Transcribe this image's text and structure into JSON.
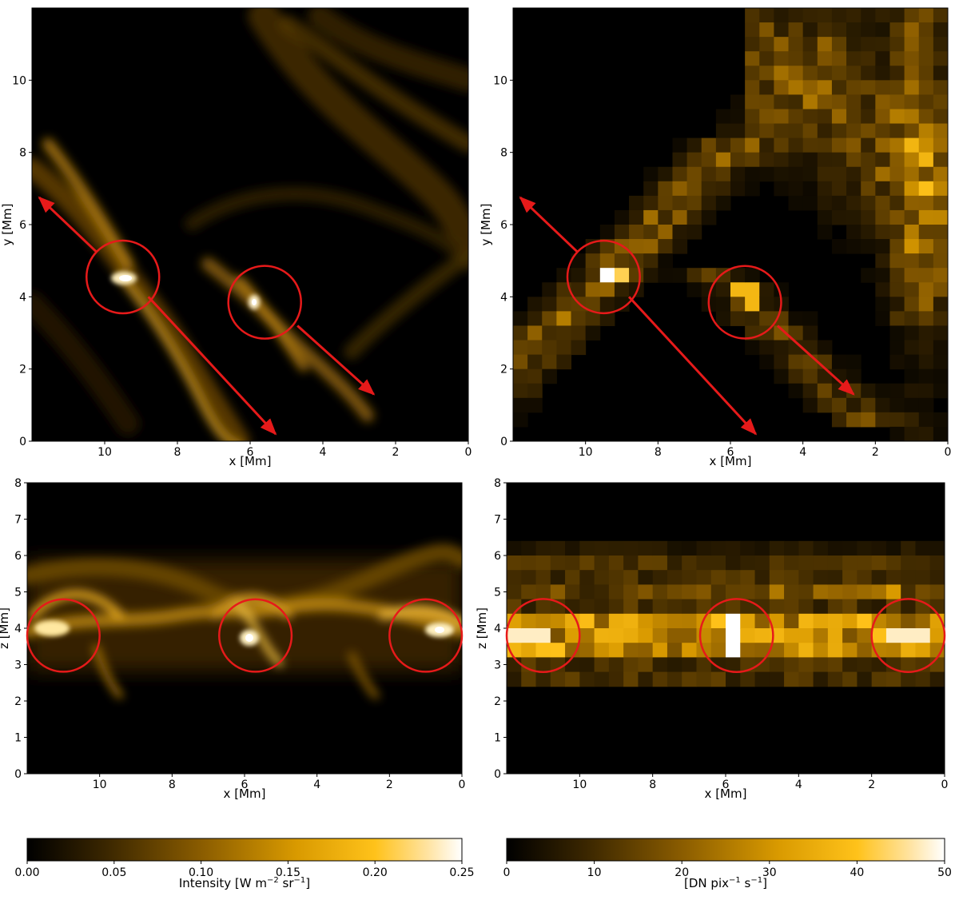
{
  "chart_data": [
    {
      "type": "heatmap",
      "panel": "top-left",
      "xlabel": "x [Mm]",
      "ylabel": "y [Mm]",
      "xlim": [
        12,
        0
      ],
      "ylim": [
        0,
        12
      ],
      "xticks": [
        10,
        8,
        6,
        4,
        2,
        0
      ],
      "yticks": [
        0,
        2,
        4,
        6,
        8,
        10
      ],
      "circles": [
        {
          "x": 9.5,
          "y": 4.55,
          "r": 1.0
        },
        {
          "x": 5.6,
          "y": 3.85,
          "r": 1.0
        }
      ],
      "arrows": [
        {
          "from": [
            9.5,
            4.55
          ],
          "to": [
            11.8,
            6.75
          ],
          "style": "line-from-circle-edge"
        },
        {
          "from": [
            8.8,
            4.0
          ],
          "to": [
            5.3,
            0.2
          ]
        },
        {
          "from": [
            4.7,
            3.2
          ],
          "to": [
            2.6,
            1.3
          ]
        }
      ]
    },
    {
      "type": "heatmap",
      "panel": "top-right",
      "xlabel": "x [Mm]",
      "ylabel": "y [Mm]",
      "xlim": [
        12,
        0
      ],
      "ylim": [
        0,
        12
      ],
      "xticks": [
        10,
        8,
        6,
        4,
        2,
        0
      ],
      "yticks": [
        0,
        2,
        4,
        6,
        8,
        10
      ],
      "circles": [
        {
          "x": 9.5,
          "y": 4.55,
          "r": 1.0
        },
        {
          "x": 5.6,
          "y": 3.85,
          "r": 1.0
        }
      ],
      "arrows": [
        {
          "from": [
            9.5,
            4.55
          ],
          "to": [
            11.8,
            6.75
          ],
          "style": "line-from-circle-edge"
        },
        {
          "from": [
            8.8,
            4.0
          ],
          "to": [
            5.3,
            0.2
          ]
        },
        {
          "from": [
            4.7,
            3.2
          ],
          "to": [
            2.6,
            1.3
          ]
        }
      ]
    },
    {
      "type": "heatmap",
      "panel": "bottom-left",
      "xlabel": "x [Mm]",
      "ylabel": "z [Mm]",
      "xlim": [
        12,
        0
      ],
      "ylim": [
        0,
        8
      ],
      "xticks": [
        10,
        8,
        6,
        4,
        2,
        0
      ],
      "yticks": [
        0,
        1,
        2,
        3,
        4,
        5,
        6,
        7,
        8
      ],
      "circles": [
        {
          "x": 11.0,
          "y": 3.8,
          "r": 1.0
        },
        {
          "x": 5.7,
          "y": 3.8,
          "r": 1.0
        },
        {
          "x": 1.0,
          "y": 3.8,
          "r": 1.0
        }
      ]
    },
    {
      "type": "heatmap",
      "panel": "bottom-right",
      "xlabel": "x [Mm]",
      "ylabel": "z [Mm]",
      "xlim": [
        12,
        0
      ],
      "ylim": [
        0,
        8
      ],
      "xticks": [
        10,
        8,
        6,
        4,
        2,
        0
      ],
      "yticks": [
        0,
        1,
        2,
        3,
        4,
        5,
        6,
        7,
        8
      ],
      "circles": [
        {
          "x": 11.0,
          "y": 3.8,
          "r": 1.0
        },
        {
          "x": 5.7,
          "y": 3.8,
          "r": 1.0
        },
        {
          "x": 1.0,
          "y": 3.8,
          "r": 1.0
        }
      ]
    }
  ],
  "colorbars": [
    {
      "label_main": "Intensity [W m",
      "label_sup1": "−2",
      "label_mid": " sr",
      "label_sup2": "−1",
      "label_end": "]",
      "range": [
        0,
        0.25
      ],
      "ticks": [
        "0.00",
        "0.05",
        "0.10",
        "0.15",
        "0.20",
        "0.25"
      ]
    },
    {
      "label_main": "[DN pix",
      "label_sup1": "−1",
      "label_mid": " s",
      "label_sup2": "−1",
      "label_end": "]",
      "range": [
        0,
        50
      ],
      "ticks": [
        "0",
        "10",
        "20",
        "30",
        "40",
        "50"
      ]
    }
  ],
  "colors": {
    "colormap": [
      "#000000",
      "#3a2600",
      "#7a5200",
      "#c28600",
      "#f5b800",
      "#ffd766",
      "#ffffff"
    ],
    "annotation": "#e61a1a"
  }
}
